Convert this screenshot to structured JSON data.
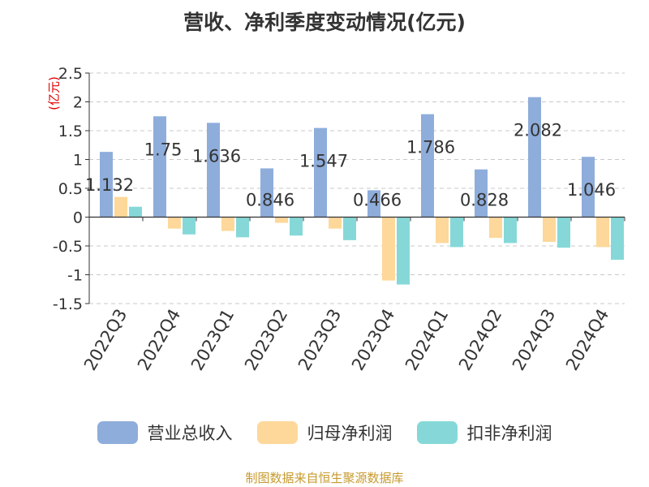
{
  "chart_data": {
    "type": "bar",
    "title": "营收、净利季度变动情况(亿元)",
    "unit_label": "(亿元)",
    "categories": [
      "2022Q3",
      "2022Q4",
      "2023Q1",
      "2023Q2",
      "2023Q3",
      "2023Q4",
      "2024Q1",
      "2024Q2",
      "2024Q3",
      "2024Q4"
    ],
    "series": [
      {
        "name": "营业总收入",
        "color": "#8eaddb",
        "values": [
          1.132,
          1.75,
          1.636,
          0.846,
          1.547,
          0.466,
          1.786,
          0.828,
          2.082,
          1.046
        ]
      },
      {
        "name": "归母净利润",
        "color": "#fdd89a",
        "values": [
          0.35,
          -0.2,
          -0.24,
          -0.1,
          -0.2,
          -1.1,
          -0.45,
          -0.36,
          -0.43,
          -0.52
        ]
      },
      {
        "name": "扣非净利润",
        "color": "#86d8d8",
        "values": [
          0.18,
          -0.3,
          -0.35,
          -0.32,
          -0.4,
          -1.17,
          -0.52,
          -0.45,
          -0.53,
          -0.74
        ]
      }
    ],
    "data_labels": [
      "1.132",
      "1.75",
      "1.636",
      "0.846",
      "1.547",
      "0.466",
      "1.786",
      "0.828",
      "2.082",
      "1.046"
    ],
    "yticks": [
      "2.5",
      "2",
      "1.5",
      "1",
      "0.5",
      "0",
      "-0.5",
      "-1",
      "-1.5"
    ],
    "ylim": [
      -1.5,
      2.5
    ],
    "grid": true,
    "legend_position": "bottom"
  },
  "source": "制图数据来自恒生聚源数据库"
}
